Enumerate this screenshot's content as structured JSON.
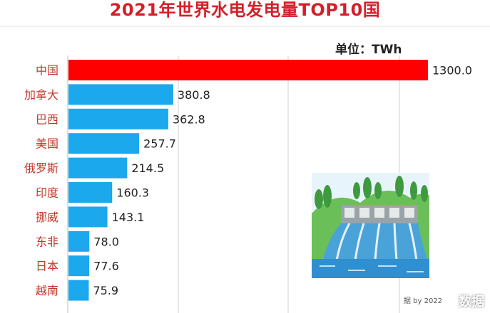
{
  "chart_data": {
    "type": "bar",
    "orientation": "horizontal",
    "title": "2021年世界水电发电量TOP10国",
    "unit_label": "单位：TWh",
    "categories": [
      "中国",
      "加拿大",
      "巴西",
      "美国",
      "俄罗斯",
      "印度",
      "挪威",
      "东非",
      "日本",
      "越南"
    ],
    "values": [
      1300.0,
      380.8,
      362.8,
      257.7,
      214.5,
      160.3,
      143.1,
      78.0,
      77.6,
      75.9
    ],
    "value_labels": [
      "1300.0",
      "380.8",
      "362.8",
      "257.7",
      "214.5",
      "160.3",
      "143.1",
      "78.0",
      "77.6",
      "75.9"
    ],
    "xlim": [
      0,
      1300
    ],
    "grid": true,
    "colors": {
      "highlight": "#ff0000",
      "default": "#1ba8ec",
      "category_text": "#c0392b",
      "title": "#d4202a"
    }
  },
  "illustration": "hydroelectric-dam",
  "source_note": "据 by 2022",
  "watermark": "数据"
}
